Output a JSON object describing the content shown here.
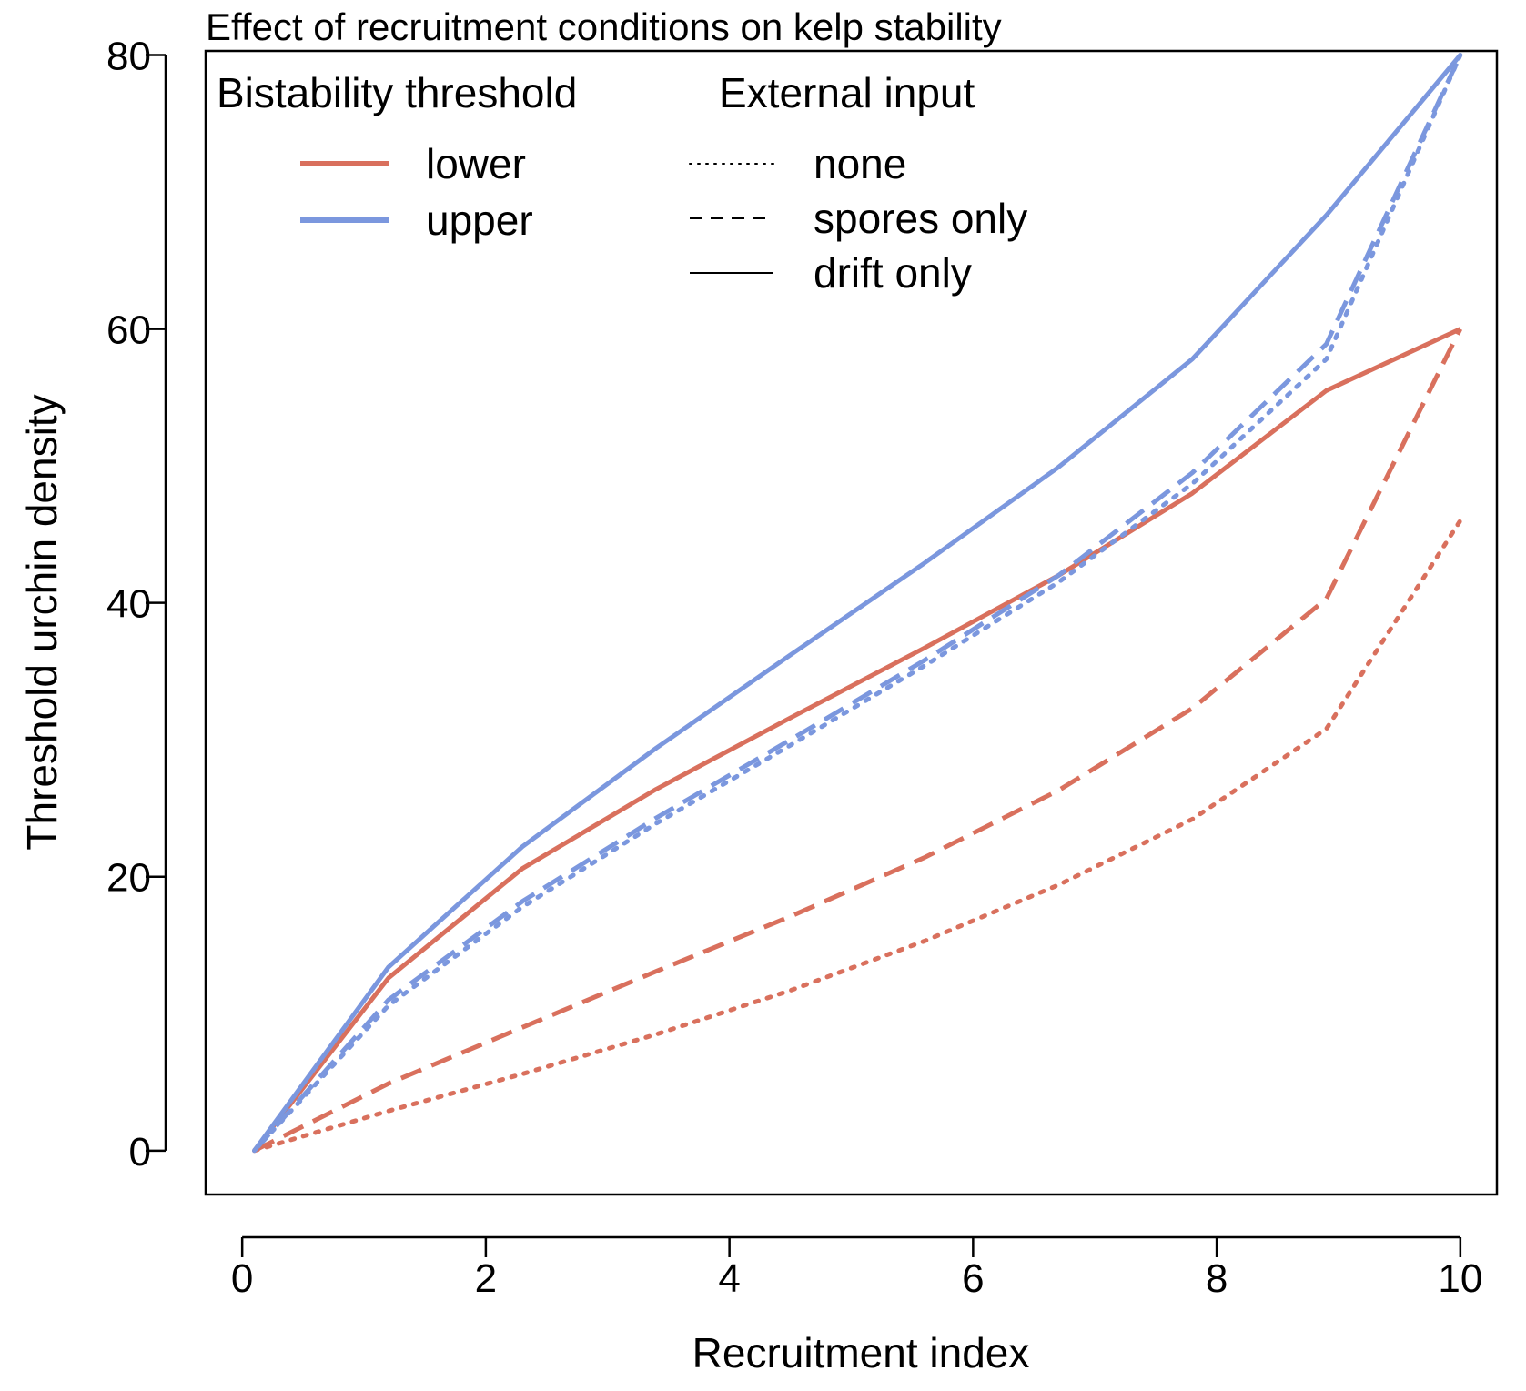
{
  "chart_data": {
    "type": "line",
    "title": "Effect of recruitment conditions on kelp stability",
    "xlabel": "Recruitment index",
    "ylabel": "Threshold urchin density",
    "xlim": [
      -0.3,
      10.3
    ],
    "ylim": [
      -3.2,
      80.3
    ],
    "x_ticks": [
      0,
      2,
      4,
      6,
      8,
      10
    ],
    "y_ticks": [
      0,
      20,
      40,
      60,
      80
    ],
    "grid": false,
    "legend_color": {
      "title": "Bistability threshold",
      "entries": [
        {
          "label": "lower",
          "color": "#d9705d"
        },
        {
          "label": "upper",
          "color": "#7b97de"
        }
      ]
    },
    "legend_linetype": {
      "title": "External input",
      "entries": [
        {
          "label": "none",
          "dash": "dotted"
        },
        {
          "label": "spores only",
          "dash": "dashed"
        },
        {
          "label": "drift only",
          "dash": "solid"
        }
      ]
    },
    "series": [
      {
        "name": "lower - drift only",
        "threshold": "lower",
        "input": "drift only",
        "color": "#d9705d",
        "dash": "solid",
        "x": [
          0.1,
          1.2,
          2.3,
          3.4,
          4.5,
          5.6,
          6.7,
          7.8,
          8.9,
          10.0
        ],
        "y": [
          0,
          12.6,
          20.6,
          26.4,
          31.6,
          36.7,
          42.0,
          48.0,
          55.5,
          60.0
        ]
      },
      {
        "name": "upper - drift only",
        "threshold": "upper",
        "input": "drift only",
        "color": "#7b97de",
        "dash": "solid",
        "x": [
          0.1,
          1.2,
          2.3,
          3.4,
          4.5,
          5.6,
          6.7,
          7.8,
          8.9,
          10.0
        ],
        "y": [
          0,
          13.4,
          22.2,
          29.4,
          36.2,
          42.9,
          49.9,
          57.8,
          68.3,
          80.0
        ]
      },
      {
        "name": "lower - spores only",
        "threshold": "lower",
        "input": "spores only",
        "color": "#d9705d",
        "dash": "dashed",
        "x": [
          0.1,
          1.2,
          2.3,
          3.4,
          4.5,
          5.6,
          6.7,
          7.8,
          8.9,
          10.0
        ],
        "y": [
          0,
          4.9,
          9.0,
          13.1,
          17.1,
          21.4,
          26.3,
          32.3,
          40.3,
          60.0
        ]
      },
      {
        "name": "upper - spores only",
        "threshold": "upper",
        "input": "spores only",
        "color": "#7b97de",
        "dash": "dashed",
        "x": [
          0.1,
          1.2,
          2.3,
          3.4,
          4.5,
          5.6,
          6.7,
          7.8,
          8.9,
          10.0
        ],
        "y": [
          0,
          11.0,
          18.2,
          24.3,
          30.0,
          35.8,
          42.0,
          49.5,
          58.9,
          80.0
        ]
      },
      {
        "name": "lower - none",
        "threshold": "lower",
        "input": "none",
        "color": "#d9705d",
        "dash": "dotted",
        "x": [
          0.1,
          1.2,
          2.3,
          3.4,
          4.5,
          5.6,
          6.7,
          7.8,
          8.9,
          10.0
        ],
        "y": [
          0,
          2.9,
          5.6,
          8.5,
          11.7,
          15.3,
          19.4,
          24.2,
          30.8,
          46.0
        ]
      },
      {
        "name": "upper - none",
        "threshold": "upper",
        "input": "none",
        "color": "#7b97de",
        "dash": "dotted",
        "x": [
          0.1,
          1.2,
          2.3,
          3.4,
          4.5,
          5.6,
          6.7,
          7.8,
          8.9,
          10.0
        ],
        "y": [
          0,
          10.6,
          17.8,
          23.9,
          29.6,
          35.4,
          41.5,
          48.7,
          57.8,
          80.0
        ]
      }
    ]
  }
}
